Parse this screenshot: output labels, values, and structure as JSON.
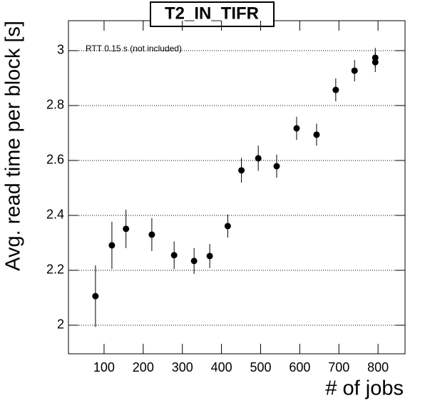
{
  "chart_data": {
    "type": "scatter",
    "title": "T2_IN_TIFR",
    "x_label": "# of jobs",
    "y_label": "Avg. read time per block [s]",
    "annotation": "RTT 0.15 s (not included)",
    "x": [
      78,
      120,
      156,
      222,
      279,
      330,
      370,
      416,
      451,
      494,
      541,
      592,
      643,
      692,
      740,
      793,
      793
    ],
    "values": [
      2.106,
      2.291,
      2.351,
      2.33,
      2.255,
      2.234,
      2.252,
      2.361,
      2.564,
      2.608,
      2.579,
      2.717,
      2.694,
      2.857,
      2.927,
      2.974,
      2.958
    ],
    "errors": [
      0.112,
      0.086,
      0.07,
      0.06,
      0.05,
      0.047,
      0.044,
      0.042,
      0.045,
      0.046,
      0.042,
      0.042,
      0.04,
      0.042,
      0.039,
      0.036,
      0.036
    ],
    "color": "#000000",
    "xlim": [
      9,
      869
    ],
    "ylim": [
      1.896,
      3.109
    ],
    "xticks": [
      100,
      200,
      300,
      400,
      500,
      600,
      700,
      800
    ],
    "yticks": [
      2,
      2.2,
      2.4,
      2.6,
      2.8,
      3
    ],
    "grid": true
  }
}
